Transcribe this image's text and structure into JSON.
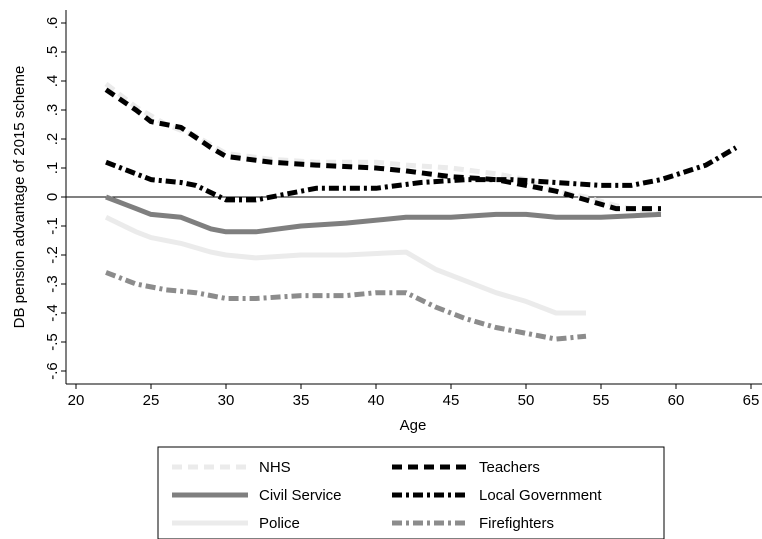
{
  "chart_data": {
    "type": "line",
    "xlabel": "Age",
    "ylabel": "DB pension advantage of 2015 scheme",
    "xlim": [
      20,
      65
    ],
    "ylim": [
      -0.6,
      0.6
    ],
    "xticks": [
      "20",
      "25",
      "30",
      "35",
      "40",
      "45",
      "50",
      "55",
      "60",
      "65"
    ],
    "yticks": [
      "-.6",
      "-.5",
      "-.4",
      "-.3",
      "-.2",
      "-.1",
      "0",
      ".1",
      ".2",
      ".3",
      ".4",
      ".5",
      ".6"
    ],
    "reference_line_y": 0,
    "grid": false,
    "legend_position": "bottom",
    "series": [
      {
        "name": "NHS",
        "color": "#ebebeb",
        "dash": "dashed",
        "x": [
          22,
          24,
          26,
          28,
          30,
          33,
          36,
          40,
          42,
          45,
          48,
          50,
          52,
          54,
          56,
          58,
          59
        ],
        "y": [
          0.39,
          0.31,
          0.25,
          0.21,
          0.15,
          0.13,
          0.12,
          0.12,
          0.11,
          0.1,
          0.08,
          0.06,
          0.02,
          0.0,
          -0.03,
          -0.05,
          -0.06
        ]
      },
      {
        "name": "Teachers",
        "color": "#000000",
        "dash": "dashed",
        "x": [
          22,
          24,
          25,
          27,
          29,
          30,
          33,
          36,
          40,
          42,
          45,
          48,
          50,
          52,
          54,
          56,
          59
        ],
        "y": [
          0.37,
          0.3,
          0.26,
          0.24,
          0.17,
          0.14,
          0.12,
          0.11,
          0.1,
          0.09,
          0.07,
          0.06,
          0.04,
          0.02,
          -0.01,
          -0.04,
          -0.04
        ]
      },
      {
        "name": "Civil Service",
        "color": "#7f7f7f",
        "dash": "solid",
        "x": [
          22,
          24,
          25,
          27,
          29,
          30,
          32,
          35,
          38,
          42,
          45,
          48,
          50,
          52,
          55,
          59
        ],
        "y": [
          0.0,
          -0.04,
          -0.06,
          -0.07,
          -0.11,
          -0.12,
          -0.12,
          -0.1,
          -0.09,
          -0.07,
          -0.07,
          -0.06,
          -0.06,
          -0.07,
          -0.07,
          -0.06
        ]
      },
      {
        "name": "Local Government",
        "color": "#000000",
        "dash": "dashdot",
        "x": [
          22,
          24,
          25,
          27,
          28,
          30,
          32,
          34,
          36,
          38,
          40,
          43,
          46,
          49,
          52,
          55,
          57,
          59,
          62,
          64
        ],
        "y": [
          0.12,
          0.08,
          0.06,
          0.05,
          0.04,
          -0.01,
          -0.01,
          0.01,
          0.03,
          0.03,
          0.03,
          0.05,
          0.06,
          0.06,
          0.05,
          0.04,
          0.04,
          0.06,
          0.11,
          0.17
        ]
      },
      {
        "name": "Police",
        "color": "#ebebeb",
        "dash": "solid",
        "x": [
          22,
          24,
          25,
          27,
          29,
          30,
          32,
          35,
          38,
          42,
          44,
          46,
          48,
          50,
          52,
          54
        ],
        "y": [
          -0.07,
          -0.12,
          -0.14,
          -0.16,
          -0.19,
          -0.2,
          -0.21,
          -0.2,
          -0.2,
          -0.19,
          -0.25,
          -0.29,
          -0.33,
          -0.36,
          -0.4,
          -0.4
        ]
      },
      {
        "name": "Firefighters",
        "color": "#8c8c8c",
        "dash": "dashdot",
        "x": [
          22,
          24,
          26,
          28,
          30,
          32,
          35,
          38,
          40,
          42,
          44,
          46,
          48,
          50,
          52,
          54
        ],
        "y": [
          -0.26,
          -0.3,
          -0.32,
          -0.33,
          -0.35,
          -0.35,
          -0.34,
          -0.34,
          -0.33,
          -0.33,
          -0.38,
          -0.42,
          -0.45,
          -0.47,
          -0.49,
          -0.48
        ]
      }
    ]
  }
}
